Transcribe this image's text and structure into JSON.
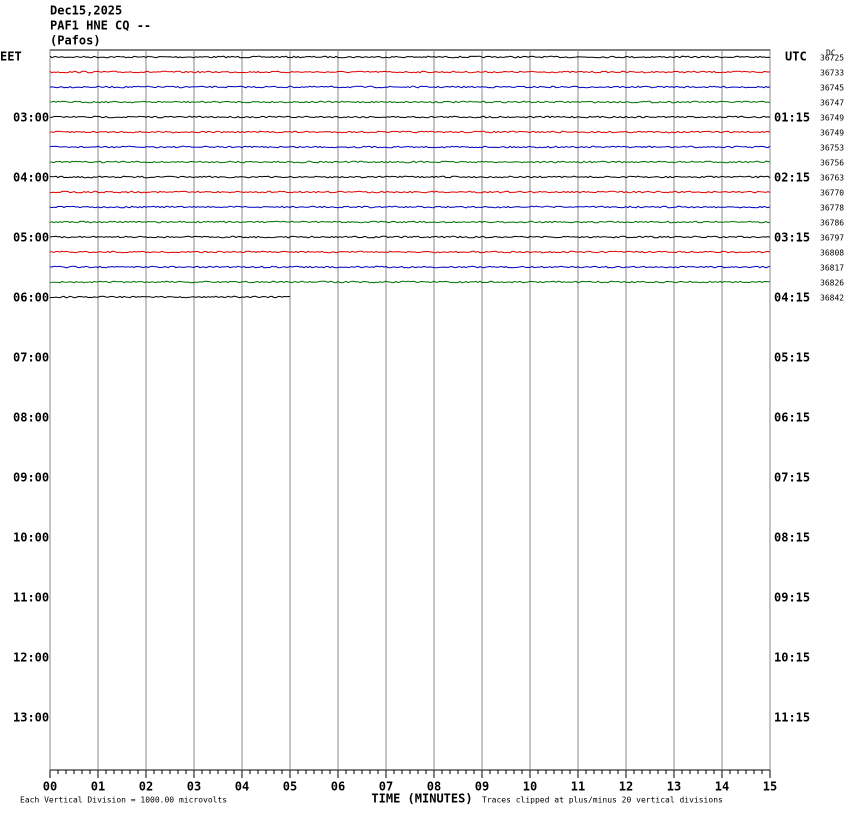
{
  "header": {
    "lines": [
      "Dec15,2025",
      "PAF1 HNE CQ --",
      "(Pafos)"
    ]
  },
  "left_timezone": "EET",
  "right_timezone": "UTC",
  "dc_label": "DC",
  "left_times": [
    "03:00",
    "04:00",
    "05:00",
    "06:00",
    "07:00",
    "08:00",
    "09:00",
    "10:00",
    "11:00",
    "12:00",
    "13:00"
  ],
  "right_times": [
    "01:15",
    "02:15",
    "03:15",
    "04:15",
    "05:15",
    "06:15",
    "07:15",
    "08:15",
    "09:15",
    "10:15",
    "11:15"
  ],
  "traces": [
    {
      "color": "#000000",
      "dc": "36725"
    },
    {
      "color": "#e00000",
      "dc": "36733"
    },
    {
      "color": "#0000c0",
      "dc": "36745"
    },
    {
      "color": "#007000",
      "dc": "36747"
    },
    {
      "color": "#000000",
      "dc": "36749"
    },
    {
      "color": "#e00000",
      "dc": "36749"
    },
    {
      "color": "#0000c0",
      "dc": "36753"
    },
    {
      "color": "#007000",
      "dc": "36756"
    },
    {
      "color": "#000000",
      "dc": "36763"
    },
    {
      "color": "#e00000",
      "dc": "36770"
    },
    {
      "color": "#0000c0",
      "dc": "36778"
    },
    {
      "color": "#007000",
      "dc": "36786"
    },
    {
      "color": "#000000",
      "dc": "36797"
    },
    {
      "color": "#e00000",
      "dc": "36808"
    },
    {
      "color": "#0000c0",
      "dc": "36817"
    },
    {
      "color": "#007000",
      "dc": "36826"
    },
    {
      "color": "#000000",
      "dc": "36842"
    }
  ],
  "x_axis": {
    "labels": [
      "00",
      "01",
      "02",
      "03",
      "04",
      "05",
      "06",
      "07",
      "08",
      "09",
      "10",
      "11",
      "12",
      "13",
      "14",
      "15"
    ],
    "title": "TIME (MINUTES)"
  },
  "footer": {
    "scale": "Each Vertical Division = 1000.00 microvolts",
    "clip": "Traces clipped at plus/minus 20 vertical divisions"
  }
}
